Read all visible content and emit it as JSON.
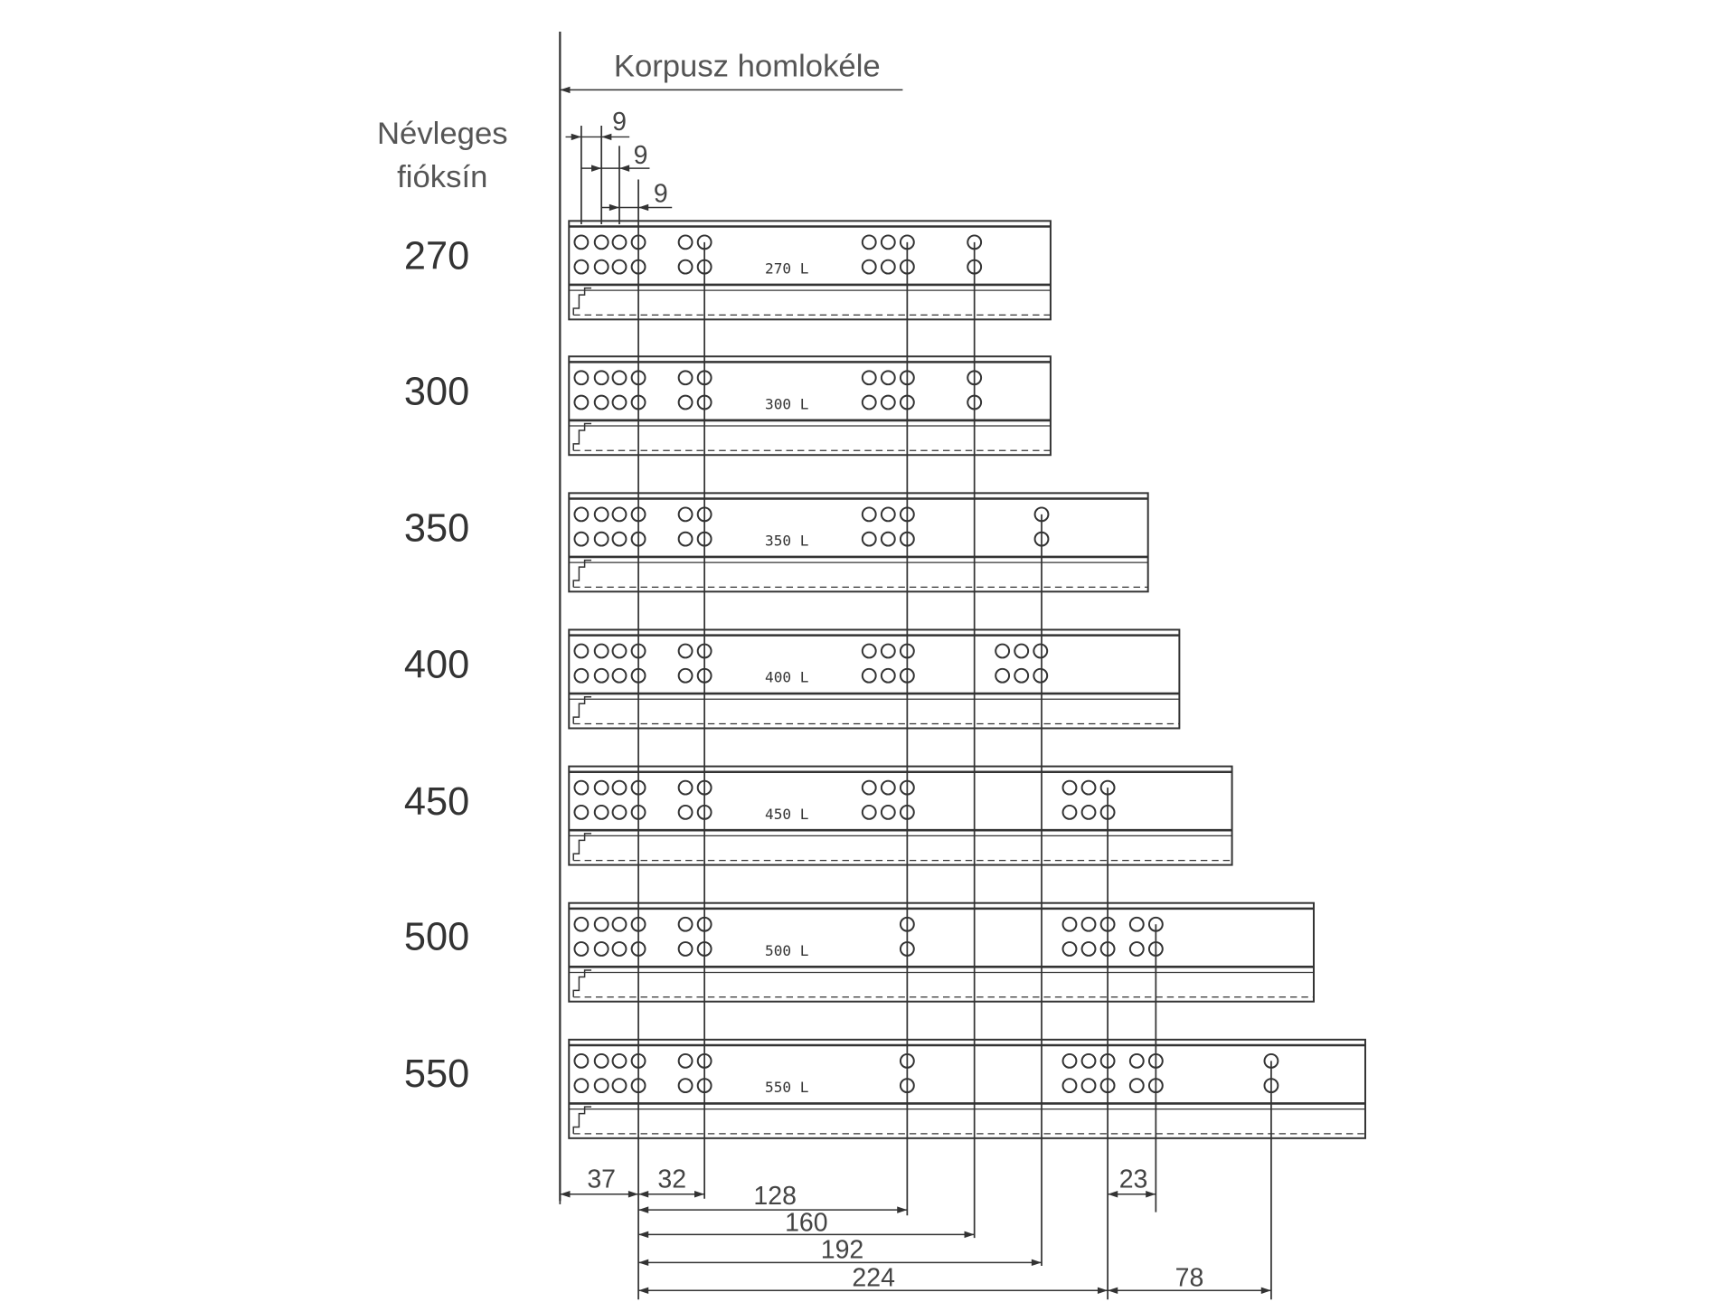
{
  "header": {
    "front_edge_label": "Korpusz homlokéle",
    "nominal_label_line1": "Névleges",
    "nominal_label_line2": "fióksín"
  },
  "pitch_dims": [
    "9",
    "9",
    "9"
  ],
  "rails": [
    {
      "size": "270",
      "mark": "270 L"
    },
    {
      "size": "300",
      "mark": "300 L"
    },
    {
      "size": "350",
      "mark": "350 L"
    },
    {
      "size": "400",
      "mark": "400 L"
    },
    {
      "size": "450",
      "mark": "450 L"
    },
    {
      "size": "500",
      "mark": "500 L"
    },
    {
      "size": "550",
      "mark": "550 L"
    }
  ],
  "bottom_dims": {
    "d37": "37",
    "d32": "32",
    "d128": "128",
    "d160": "160",
    "d192": "192",
    "d224": "224",
    "d23": "23",
    "d78": "78"
  },
  "colors": {
    "line": "#333333",
    "text": "#444444"
  }
}
